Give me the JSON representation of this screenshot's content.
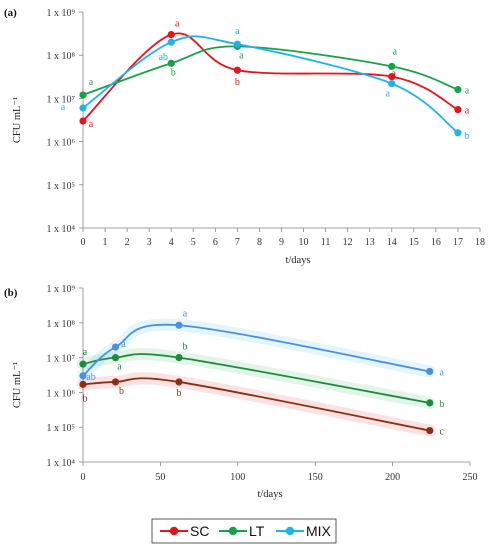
{
  "colors": {
    "SC": "#e4141b",
    "LT": "#17a24a",
    "MIX": "#1fb4e6",
    "SC_b": "#8b2e12",
    "LT_b": "#1e8b3a",
    "MIX_b": "#4a90e2"
  },
  "legend": [
    {
      "key": "SC",
      "label": "SC"
    },
    {
      "key": "LT",
      "label": "LT"
    },
    {
      "key": "MIX",
      "label": "MIX"
    }
  ],
  "chart_data": [
    {
      "panel": "(a)",
      "type": "line",
      "xlabel": "t/days",
      "ylabel": "CFU mL⁻¹",
      "xlim": [
        0,
        18
      ],
      "ylim_log10": [
        4,
        9
      ],
      "yscale": "log",
      "xticks": [
        0,
        1,
        2,
        3,
        4,
        5,
        6,
        7,
        8,
        9,
        10,
        11,
        12,
        13,
        14,
        15,
        16,
        17,
        18
      ],
      "yticks": [
        "1 x 10⁴",
        "1 x 10⁵",
        "1 x 10⁶",
        "1 x 10⁷",
        "1 x 10⁸",
        "1 x 10⁹"
      ],
      "series": [
        {
          "key": "SC",
          "x": [
            0,
            4,
            7,
            14,
            17
          ],
          "y": [
            3000000,
            300000000,
            45000000,
            32000000,
            5500000
          ],
          "labels": [
            "a",
            "a",
            "b",
            "a",
            "a"
          ]
        },
        {
          "key": "LT",
          "x": [
            0,
            4,
            7,
            14,
            17
          ],
          "y": [
            12000000,
            65000000,
            160000000,
            55000000,
            16000000
          ],
          "labels": [
            "a",
            "b",
            "a",
            "a",
            "a"
          ]
        },
        {
          "key": "MIX",
          "x": [
            0,
            4,
            7,
            14,
            17
          ],
          "y": [
            6000000,
            200000000,
            180000000,
            22000000,
            1600000
          ],
          "labels": [
            "a",
            "ab",
            "a",
            "a",
            "b"
          ]
        }
      ]
    },
    {
      "panel": "(b)",
      "type": "line",
      "xlabel": "t/days",
      "ylabel": "CFU mL⁻¹",
      "xlim": [
        0,
        250
      ],
      "ylim_log10": [
        4,
        9
      ],
      "yscale": "log",
      "xticks": [
        0,
        50,
        100,
        150,
        200,
        250
      ],
      "yticks": [
        "1 x 10⁴",
        "1 x 10⁵",
        "1 x 10⁶",
        "1 x 10⁷",
        "1 x 10⁸",
        "1 x 10⁹"
      ],
      "series": [
        {
          "key": "SC",
          "x": [
            0,
            21,
            62,
            224
          ],
          "y": [
            1700000,
            2000000,
            2000000,
            80000
          ],
          "labels": [
            "b",
            "b",
            "b",
            "c"
          ]
        },
        {
          "key": "LT",
          "x": [
            0,
            21,
            62,
            224
          ],
          "y": [
            6500000,
            10000000,
            10000000,
            500000
          ],
          "labels": [
            "a",
            "a",
            "b",
            "b"
          ]
        },
        {
          "key": "MIX",
          "x": [
            0,
            21,
            62,
            224
          ],
          "y": [
            3000000,
            20000000,
            85000000,
            4000000
          ],
          "labels": [
            "ab",
            "a",
            "a",
            "a"
          ]
        }
      ]
    }
  ]
}
